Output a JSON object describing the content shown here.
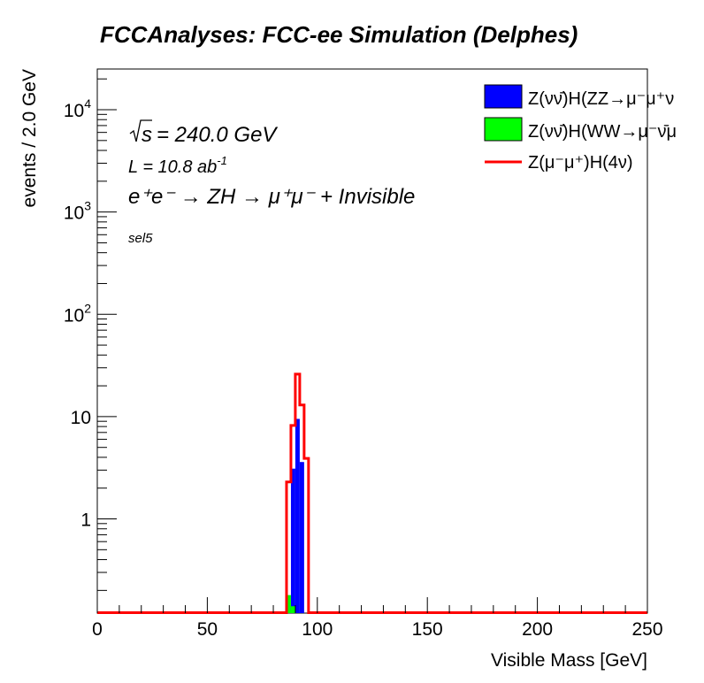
{
  "chart_data": {
    "type": "bar",
    "title": "FCCAnalyses: FCC-ee Simulation (Delphes)",
    "xlabel": "Visible Mass [GeV]",
    "ylabel": "events / 2.0 GeV",
    "xlim": [
      0,
      250
    ],
    "ylim": [
      0.12,
      25000
    ],
    "yscale": "log",
    "grid": false,
    "legend_position": "top-right",
    "bin_width": 2.0,
    "x_ticks": [
      "0",
      "50",
      "100",
      "150",
      "200",
      "250"
    ],
    "y_ticks": [
      {
        "value": 1,
        "label": "1"
      },
      {
        "value": 10,
        "label": "10"
      },
      {
        "value": 100,
        "label": "10",
        "exp": "2"
      },
      {
        "value": 1000,
        "label": "10",
        "exp": "3"
      },
      {
        "value": 10000,
        "label": "10",
        "exp": "4"
      }
    ],
    "annotations": {
      "sqrt_s": "s",
      "energy": "= 240.0 GeV",
      "lumi": "L = 10.8 ab",
      "lumi_exp": "-1",
      "process": "e⁺e⁻ → ZH → μ⁺μ⁻ + Invisible",
      "selection": "sel5"
    },
    "series": [
      {
        "name": "Z(νν̄)H(ZZ→μ⁻μ⁺ν",
        "style": "filled",
        "color": "#0000ff",
        "bins": [
          {
            "x0": 86,
            "x1": 88,
            "y": 0.14
          },
          {
            "x0": 88,
            "x1": 90,
            "y": 3.1
          },
          {
            "x0": 90,
            "x1": 92,
            "y": 9.5
          },
          {
            "x0": 92,
            "x1": 94,
            "y": 3.6
          }
        ]
      },
      {
        "name": "Z(νν̄)H(WW→μ⁻ν̄μ",
        "style": "filled",
        "color": "#00ff00",
        "bins": [
          {
            "x0": 86,
            "x1": 88,
            "y": 0.18
          },
          {
            "x0": 88,
            "x1": 90,
            "y": 0.14
          }
        ]
      },
      {
        "name": "Z(μ⁻μ⁺)H(4ν)",
        "style": "line",
        "color": "#ff0000",
        "bins": [
          {
            "x0": 86,
            "x1": 88,
            "y": 2.3
          },
          {
            "x0": 88,
            "x1": 90,
            "y": 8.2
          },
          {
            "x0": 90,
            "x1": 92,
            "y": 26
          },
          {
            "x0": 92,
            "x1": 94,
            "y": 13
          },
          {
            "x0": 94,
            "x1": 96,
            "y": 3.9
          }
        ]
      }
    ]
  }
}
